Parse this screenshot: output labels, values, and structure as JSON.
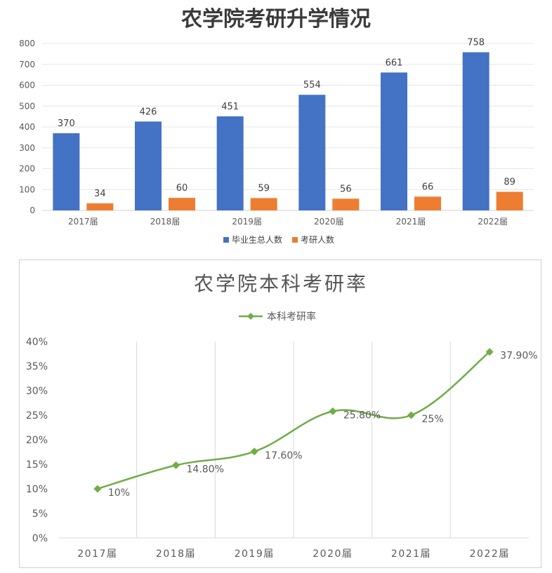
{
  "chart_data": [
    {
      "type": "bar",
      "title": "农学院考研升学情况",
      "categories": [
        "2017届",
        "2018届",
        "2019届",
        "2020届",
        "2021届",
        "2022届"
      ],
      "series": [
        {
          "name": "毕业生总人数",
          "values": [
            370,
            426,
            451,
            554,
            661,
            758
          ],
          "color": "#4472C4"
        },
        {
          "name": "考研人数",
          "values": [
            34,
            60,
            59,
            56,
            66,
            89
          ],
          "color": "#ED7D31"
        }
      ],
      "ylim": [
        0,
        800
      ],
      "yticks": [
        0,
        100,
        200,
        300,
        400,
        500,
        600,
        700,
        800
      ],
      "grid": true,
      "legend": "bottom"
    },
    {
      "type": "line",
      "title": "农学院本科考研率",
      "categories": [
        "2017届",
        "2018届",
        "2019届",
        "2020届",
        "2021届",
        "2022届"
      ],
      "series": [
        {
          "name": "本科考研率",
          "values": [
            10,
            14.8,
            17.6,
            25.8,
            25,
            37.9
          ],
          "labels": [
            "10%",
            "14.80%",
            "17.60%",
            "25.80%",
            "25%",
            "37.90%"
          ],
          "color": "#70AD47"
        }
      ],
      "ylim": [
        0,
        40
      ],
      "yticks": [
        "0%",
        "5%",
        "10%",
        "15%",
        "20%",
        "25%",
        "30%",
        "35%",
        "40%"
      ],
      "grid": true,
      "legend": "top"
    }
  ]
}
